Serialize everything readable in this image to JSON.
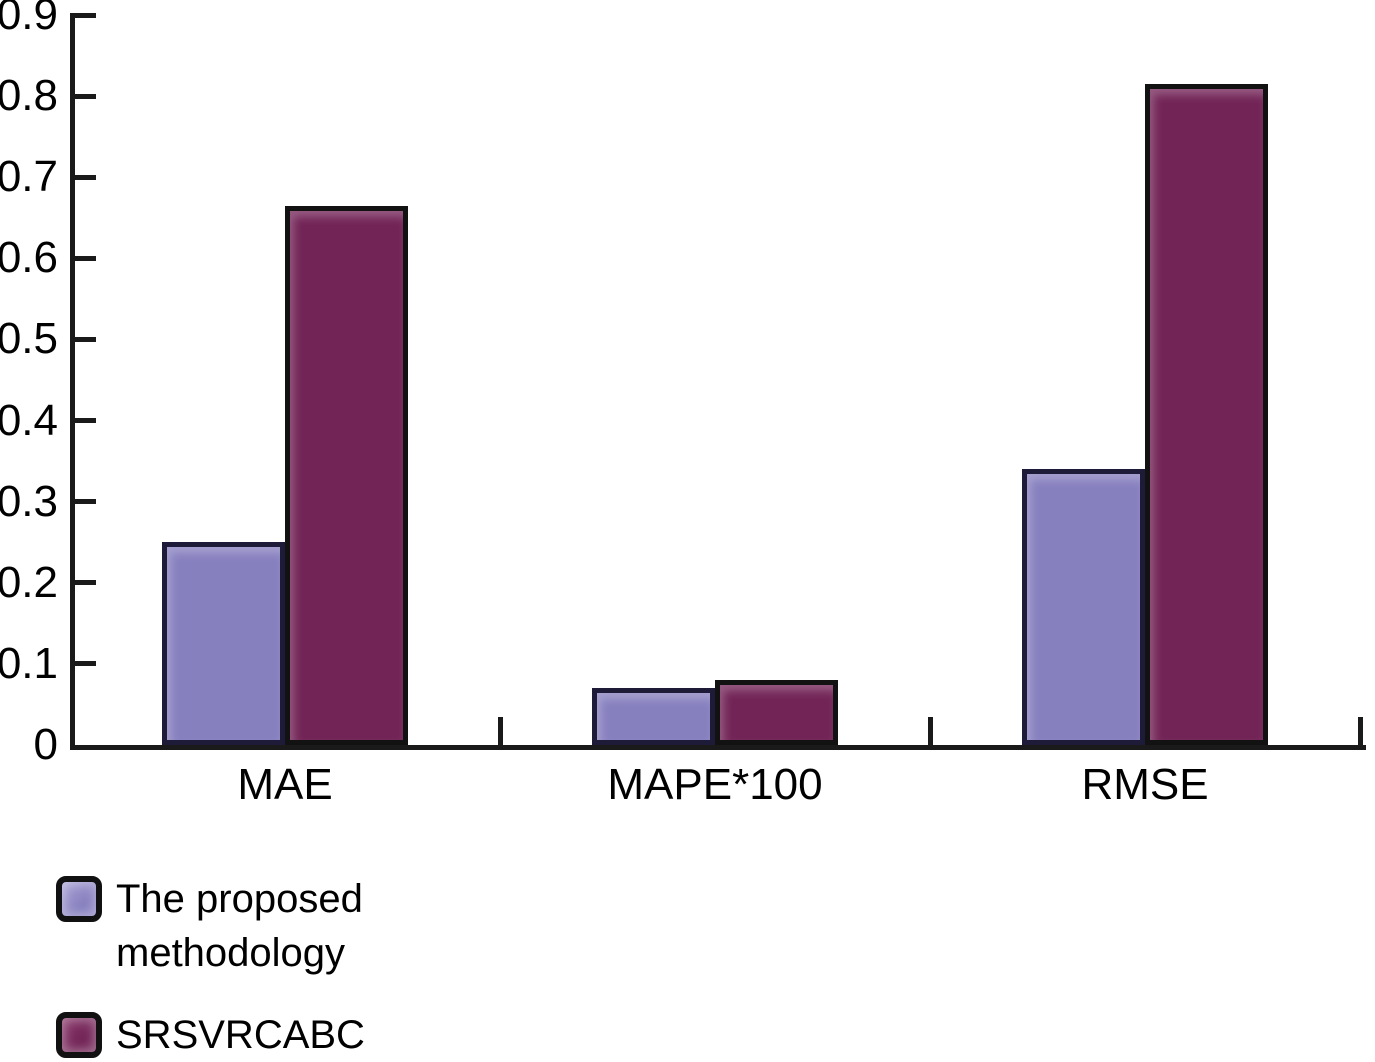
{
  "figure": {
    "background": "#FFFFFF",
    "axis_color": "#1A1A1A",
    "text_color": "#000000"
  },
  "chart_data": {
    "type": "bar",
    "title": "",
    "xlabel": "",
    "ylabel": "",
    "categories": [
      "MAE",
      "MAPE*100",
      "RMSE"
    ],
    "series": [
      {
        "key": "proposed",
        "name": "The proposed methodology",
        "values": [
          0.25,
          0.07,
          0.34
        ],
        "fill": "#8780BF",
        "border": "#1E1B39",
        "highlight": "#A9A3D4"
      },
      {
        "key": "srsvrcabc",
        "name": "SRSVRCABC",
        "values": [
          0.665,
          0.08,
          0.815
        ],
        "fill": "#722457",
        "border": "#121212",
        "highlight": "#8A3A6C"
      }
    ],
    "ylim": [
      0,
      0.9
    ],
    "ytick_step": 0.1,
    "ytick_labels": [
      "0.9",
      "0.8",
      "0.7",
      "0.6",
      "0.5",
      "0.4",
      "0.3",
      "0.2",
      "0.1",
      "0"
    ],
    "grid": false,
    "legend_position": "bottom-left"
  }
}
